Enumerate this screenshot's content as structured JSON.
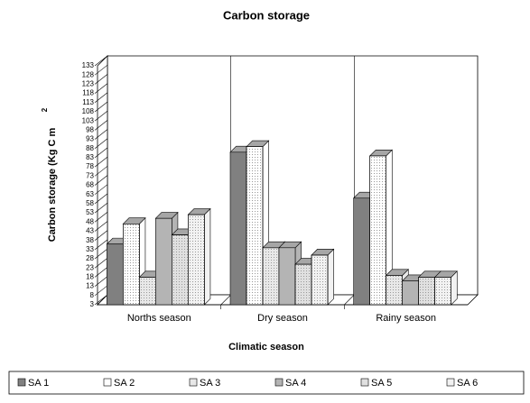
{
  "chart_data": {
    "type": "bar3d",
    "title": "Carbon storage",
    "y_label": "Carbon storage (Kg C m",
    "y_label_sup": "2",
    "x_label": "Climatic season",
    "categories": [
      "Norths season",
      "Dry season",
      "Rainy season"
    ],
    "series": [
      {
        "name": "SA 1",
        "color": "#808080",
        "values": [
          36,
          86,
          61
        ]
      },
      {
        "name": "SA 2",
        "color": "#ffffff",
        "values": [
          47,
          89,
          84
        ]
      },
      {
        "name": "SA 3",
        "color": "#e8e8e8",
        "values": [
          18,
          34,
          19
        ]
      },
      {
        "name": "SA 4",
        "color": "#b4b4b4",
        "values": [
          50,
          34,
          16
        ]
      },
      {
        "name": "SA 5",
        "color": "#e0e0e0",
        "values": [
          41,
          25,
          18
        ]
      },
      {
        "name": "SA 6",
        "color": "#f2f2f2",
        "values": [
          52,
          30,
          18
        ]
      }
    ],
    "ylim": [
      3,
      133
    ],
    "yticks": [
      3,
      8,
      13,
      18,
      23,
      28,
      33,
      38,
      43,
      48,
      53,
      58,
      63,
      68,
      73,
      78,
      83,
      88,
      93,
      98,
      103,
      108,
      113,
      118,
      123,
      128,
      133
    ],
    "grid": true
  }
}
